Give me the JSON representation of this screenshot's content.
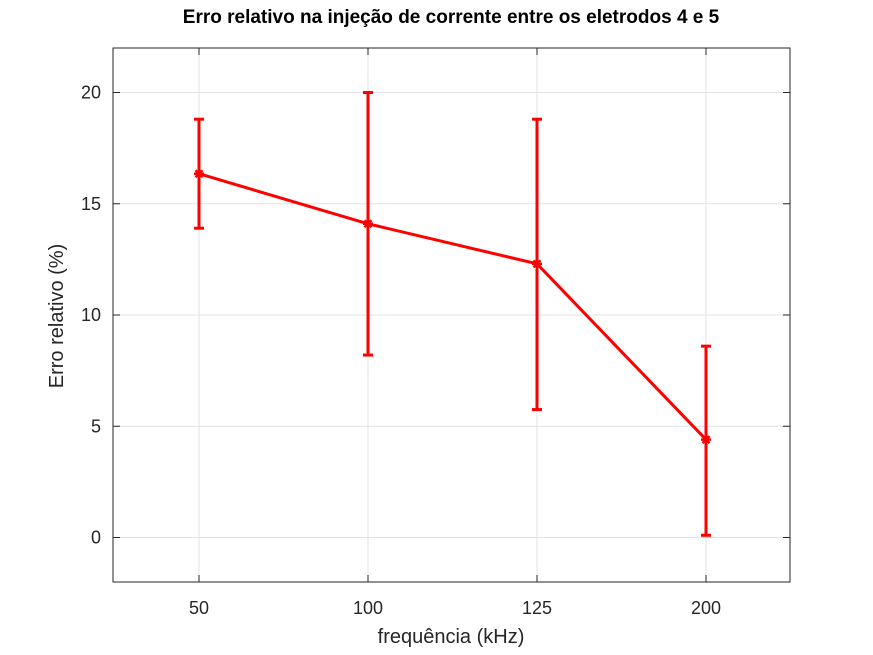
{
  "chart_data": {
    "type": "line",
    "title": "Erro relativo na injeção de corrente entre os eletrodos 4 e 5",
    "xlabel": "frequência (kHz)",
    "ylabel": "Erro relativo (%)",
    "categories": [
      "50",
      "100",
      "125",
      "200"
    ],
    "ylim": [
      -2,
      22
    ],
    "yticks": [
      0,
      5,
      10,
      15,
      20
    ],
    "grid": true,
    "series": [
      {
        "values": [
          16.35,
          14.1,
          12.3,
          4.4
        ],
        "error_low": [
          13.9,
          8.2,
          5.75,
          0.1
        ],
        "error_high": [
          18.8,
          20.0,
          18.8,
          8.6
        ],
        "color": "#ff0000",
        "marker": "star"
      }
    ]
  }
}
